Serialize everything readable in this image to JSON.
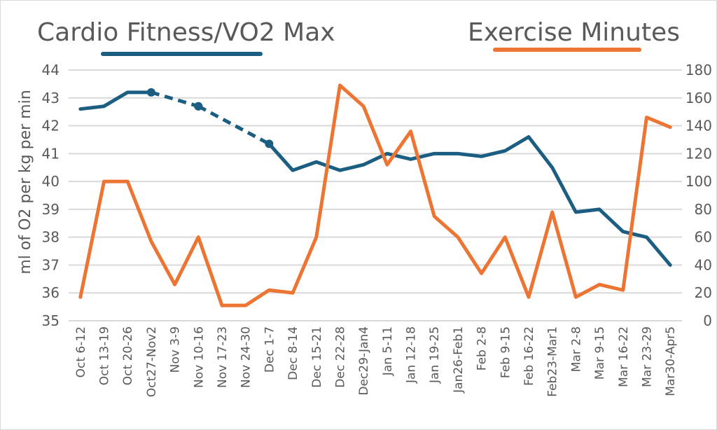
{
  "chart_data": {
    "type": "line",
    "title_left": "Cardio Fitness/VO2 Max",
    "title_right": "Exercise Minutes",
    "ylabel": "ml of O2 per kg per min",
    "y2label": "",
    "ylim": [
      35,
      44
    ],
    "y2lim": [
      0,
      180
    ],
    "yticks": [
      "35",
      "36",
      "37",
      "38",
      "39",
      "40",
      "41",
      "42",
      "43",
      "44"
    ],
    "y2ticks": [
      "0",
      "20",
      "40",
      "60",
      "80",
      "100",
      "120",
      "140",
      "160",
      "180"
    ],
    "grid": true,
    "categories": [
      "Oct 6-12",
      "Oct 13-19",
      "Oct 20-26",
      "Oct27-Nov2",
      "Nov 3-9",
      "Nov 10-16",
      "Nov 17-23",
      "Nov 24-30",
      "Dec 1-7",
      "Dec 8-14",
      "Dec 15-21",
      "Dec 22-28",
      "Dec29-Jan4",
      "Jan 5-11",
      "Jan 12-18",
      "Jan 19-25",
      "Jan26-Feb1",
      "Feb 2-8",
      "Feb 9-15",
      "Feb 16-22",
      "Feb23-Mar1",
      "Mar 2-8",
      "Mar 9-15",
      "Mar 16-22",
      "Mar 23-29",
      "Mar30-Apr5"
    ],
    "series": [
      {
        "name": "Cardio Fitness/VO2 Max",
        "axis": "left",
        "color": "#1b5e82",
        "values": [
          42.6,
          42.7,
          43.2,
          43.2,
          null,
          42.7,
          null,
          null,
          41.35,
          40.4,
          40.7,
          40.4,
          40.6,
          41.0,
          40.8,
          41.0,
          41.0,
          40.9,
          41.1,
          41.6,
          40.5,
          38.9,
          39.0,
          38.2,
          38.0,
          37.0
        ],
        "note": "gaps bridged with dashed line; markers at Oct27-Nov2, Nov 10-16, Dec 1-7"
      },
      {
        "name": "Exercise Minutes",
        "axis": "right",
        "color": "#ed7533",
        "values": [
          17,
          100,
          100,
          57,
          26,
          60,
          11,
          11,
          22,
          20,
          60,
          169,
          154,
          112,
          136,
          75,
          60,
          34,
          60,
          17,
          78,
          17,
          26,
          22,
          146,
          139
        ]
      }
    ]
  }
}
